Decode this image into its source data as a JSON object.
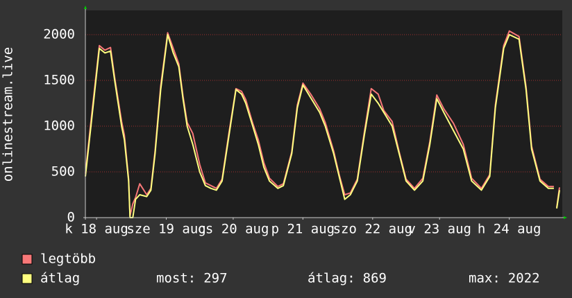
{
  "chart_data": {
    "type": "line",
    "y_label": "onlinestream.live",
    "xlim": [
      0,
      171
    ],
    "ylim": [
      0,
      2265
    ],
    "yticks": [
      0,
      500,
      1000,
      1500,
      2000
    ],
    "xticks": [
      {
        "value": 4,
        "label": "k 18 aug"
      },
      {
        "value": 29,
        "label": "sze 19 aug"
      },
      {
        "value": 53,
        "label": "cs 20 aug"
      },
      {
        "value": 78,
        "label": "p 21 aug"
      },
      {
        "value": 103,
        "label": "szo 22 aug"
      },
      {
        "value": 127,
        "label": "v 23 aug"
      },
      {
        "value": 152,
        "label": "h 24 aug"
      }
    ],
    "grid": true,
    "x": [
      0,
      2,
      5,
      7,
      9,
      10.5,
      13,
      14,
      15.5,
      16,
      17,
      18,
      19.5,
      22,
      23.5,
      25,
      27,
      29.5,
      31.5,
      33.5,
      35,
      36.5,
      38.5,
      41,
      43,
      45,
      47,
      49,
      51.5,
      54,
      56,
      57.5,
      60,
      62,
      64,
      66,
      69,
      71,
      74,
      76,
      78,
      81,
      84,
      86,
      89,
      91,
      93,
      95,
      97.5,
      100,
      102.5,
      105,
      107,
      110,
      112.5,
      115,
      118,
      121,
      123.5,
      126,
      128.5,
      132,
      135.5,
      138.5,
      142,
      145,
      147,
      150,
      152,
      155.5,
      158,
      160,
      163,
      166,
      168,
      168.5,
      169,
      170
    ],
    "series": [
      {
        "name": "legtöbb",
        "color": "#f87878",
        "values": [
          480,
          1050,
          1880,
          1830,
          1860,
          1530,
          1050,
          900,
          420,
          20,
          150,
          220,
          370,
          250,
          320,
          730,
          1440,
          2020,
          1850,
          1680,
          1330,
          1040,
          920,
          580,
          380,
          350,
          320,
          420,
          930,
          1410,
          1380,
          1290,
          1030,
          850,
          600,
          430,
          340,
          370,
          720,
          1230,
          1470,
          1340,
          1190,
          1040,
          730,
          470,
          250,
          270,
          420,
          930,
          1410,
          1350,
          1170,
          1050,
          720,
          420,
          320,
          430,
          830,
          1340,
          1190,
          1030,
          800,
          430,
          320,
          470,
          1230,
          1880,
          2040,
          1980,
          1430,
          780,
          420,
          340,
          340,
          null,
          110,
          330
        ]
      },
      {
        "name": "átlag",
        "color": "#ffff80",
        "values": [
          450,
          1000,
          1850,
          1800,
          1820,
          1500,
          1000,
          850,
          400,
          0,
          0,
          200,
          250,
          230,
          300,
          700,
          1400,
          2000,
          1800,
          1650,
          1300,
          1000,
          800,
          500,
          350,
          320,
          300,
          400,
          900,
          1400,
          1350,
          1250,
          1000,
          800,
          550,
          400,
          320,
          350,
          700,
          1200,
          1450,
          1300,
          1150,
          1000,
          700,
          450,
          200,
          250,
          400,
          900,
          1350,
          1250,
          1150,
          1000,
          700,
          400,
          300,
          400,
          800,
          1300,
          1150,
          950,
          750,
          400,
          300,
          450,
          1200,
          1850,
          2000,
          1950,
          1400,
          750,
          400,
          320,
          320,
          null,
          100,
          300
        ]
      }
    ],
    "stats": [
      {
        "label": "most:",
        "value": 297
      },
      {
        "label": "átlag:",
        "value": 869
      },
      {
        "label": "max:",
        "value": 2022
      }
    ]
  }
}
